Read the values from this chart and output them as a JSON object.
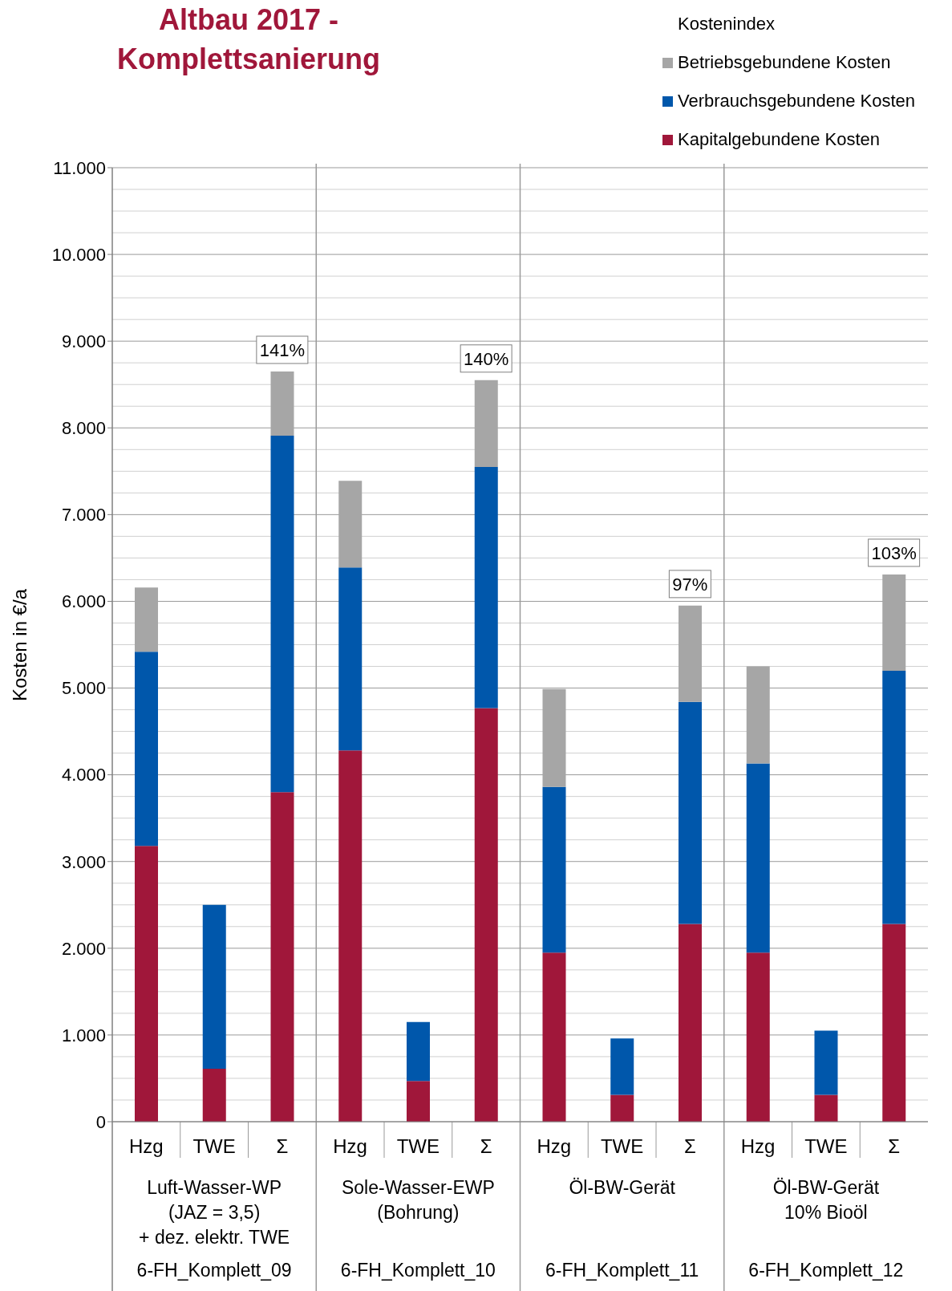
{
  "chart_data": {
    "type": "bar",
    "title": "Altbau 2017 -\nKomplettsanierung",
    "ylabel": "Kosten in €/a",
    "legend_title": "Kostenindex",
    "stacked": true,
    "legend": "top right",
    "grid": true,
    "categories": [
      "Hzg",
      "TWE",
      "Σ",
      "Hzg",
      "TWE",
      "Σ",
      "Hzg",
      "TWE",
      "Σ",
      "Hzg",
      "TWE",
      "Σ"
    ],
    "series": [
      {
        "name": "Kapitalgebundene Kosten",
        "color": "#a0173a",
        "values": [
          3180,
          610,
          3800,
          4280,
          470,
          4770,
          1950,
          310,
          2280,
          1950,
          310,
          2280
        ]
      },
      {
        "name": "Verbrauchsgebundene Kosten",
        "color": "#0057ab",
        "values": [
          2240,
          1890,
          4110,
          2110,
          680,
          2780,
          1910,
          650,
          2560,
          2180,
          740,
          2920
        ]
      },
      {
        "name": "Betriebsgebundene Kosten",
        "color": "#a6a6a6",
        "values": [
          740,
          null,
          740,
          1000,
          null,
          1000,
          1130,
          null,
          1110,
          1120,
          null,
          1110
        ]
      }
    ],
    "annotations": [
      "Luft-Wasser-WP\n(JAZ = 3,5)\n+ dez. elektr. TWE",
      "Sole-Wasser-EWP\n(Bohrung)",
      "Öl-BW-Gerät",
      "Öl-BW-Gerät\n10% Bioöl",
      "6-FH_Komplett_09",
      "6-FH_Komplett_10",
      "6-FH_Komplett_11",
      "6-FH_Komplett_12",
      {
        "text": "141%",
        "y": 8650
      },
      {
        "text": "140%",
        "y": 8550
      },
      {
        "text": "97%",
        "y": 5950
      },
      {
        "text": "103%",
        "y": 6310
      }
    ],
    "ylim": [
      0,
      11000
    ],
    "yticks": [
      0,
      {
        "value": 1000,
        "label": "1.000"
      },
      {
        "value": 2000,
        "label": "2.000"
      },
      {
        "value": 3000,
        "label": "3.000"
      },
      {
        "value": 4000,
        "label": "4.000"
      },
      {
        "value": 5000,
        "label": "5.000"
      },
      {
        "value": 6000,
        "label": "6.000"
      },
      {
        "value": 7000,
        "label": "7.000"
      },
      {
        "value": 8000,
        "label": "8.000"
      },
      {
        "value": 9000,
        "label": "9.000"
      },
      {
        "value": 10000,
        "label": "10.000"
      },
      {
        "value": 11000,
        "label": "11.000"
      }
    ]
  }
}
